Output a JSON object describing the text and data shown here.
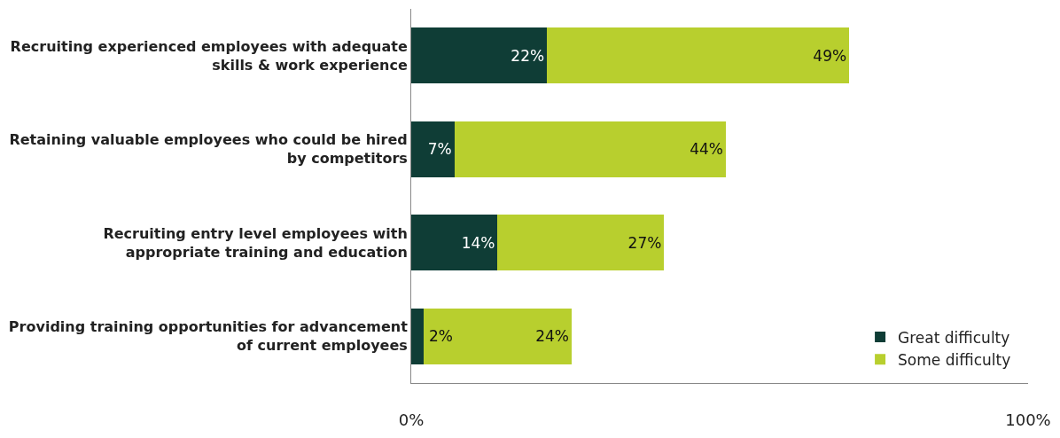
{
  "chart_data": {
    "type": "bar",
    "orientation": "horizontal",
    "stacked": true,
    "categories": [
      "Recruiting experienced employees with adequate skills & work experience",
      "Retaining valuable employees who could be hired by competitors",
      "Recruiting entry level employees with appropriate training and education",
      "Providing training opportunities for advancement of current employees"
    ],
    "series": [
      {
        "name": "Great difficulty",
        "color": "#0f3d36",
        "values": [
          22,
          7,
          14,
          2
        ],
        "value_labels": [
          "22%",
          "7%",
          "14%",
          "2%"
        ]
      },
      {
        "name": "Some difficulty",
        "color": "#b8cf2e",
        "values": [
          49,
          44,
          27,
          24
        ],
        "value_labels": [
          "49%",
          "44%",
          "27%",
          "24%"
        ]
      }
    ],
    "xlim": [
      0,
      100
    ],
    "xticks": [
      {
        "value": 0,
        "label": "0%"
      },
      {
        "value": 100,
        "label": "100%"
      }
    ],
    "legend": "bottom right"
  }
}
